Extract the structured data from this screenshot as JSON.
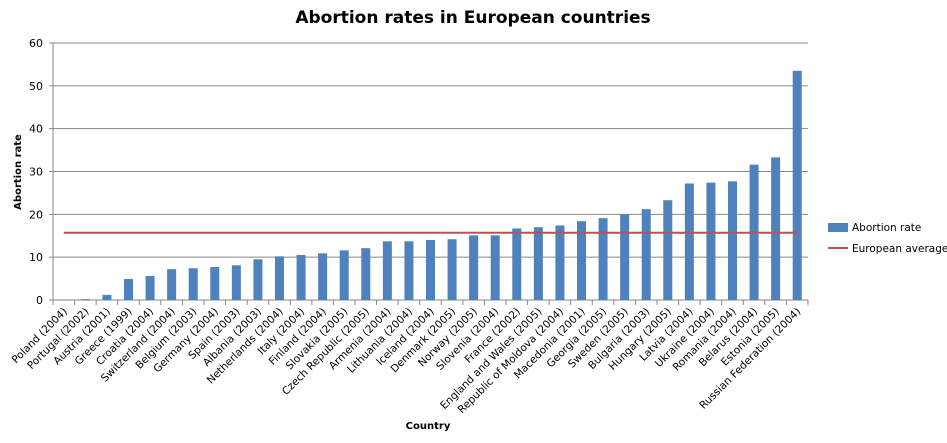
{
  "chart_data": {
    "type": "bar",
    "title": "Abortion rates in European countries",
    "xlabel": "Country",
    "ylabel": "Abortion rate",
    "ylim": [
      0,
      60
    ],
    "yticks": [
      "0",
      "10",
      "20",
      "30",
      "40",
      "50",
      "60"
    ],
    "grid": true,
    "legend_position": "right",
    "categories": [
      "Poland (2004)",
      "Portugal (2002)",
      "Austria (2001)",
      "Greece (1999)",
      "Croatia (2004)",
      "Switzerland (2004)",
      "Belgium (2003)",
      "Germany (2004)",
      "Spain (2003)",
      "Albania (2003)",
      "Netherlands (2004)",
      "Italy (2004)",
      "Finland (2004)",
      "Slovakia (2005)",
      "Czech Republic (2005)",
      "Armenia (2004)",
      "Lithuania (2004)",
      "Iceland (2004)",
      "Denmark (2005)",
      "Norway (2005)",
      "Slovenia (2004)",
      "France (2002)",
      "England and Wales (2005)",
      "Republic of Moldova (2004)",
      "Macedonia (2001)",
      "Georgia (2005)",
      "Sweden (2005)",
      "Bulgaria (2003)",
      "Hungary (2005)",
      "Latvia (2004)",
      "Ukraine (2004)",
      "Romania (2004)",
      "Belarus (2004)",
      "Estonia (2005)",
      "Russian Federation (2004)"
    ],
    "series": [
      {
        "name": "Abortion rate",
        "type": "bar",
        "color": "#4f81bd",
        "values": [
          0.05,
          0.2,
          1.2,
          4.9,
          5.6,
          7.2,
          7.4,
          7.7,
          8.1,
          9.5,
          10.2,
          10.5,
          10.9,
          11.6,
          12.1,
          13.7,
          13.7,
          14.0,
          14.2,
          15.1,
          15.1,
          16.7,
          17.0,
          17.4,
          18.4,
          19.1,
          20.0,
          21.2,
          23.3,
          27.2,
          27.4,
          27.7,
          31.6,
          33.3,
          53.5
        ]
      },
      {
        "name": "European average",
        "type": "line",
        "color": "#c0504d",
        "value": 15.7
      }
    ]
  }
}
